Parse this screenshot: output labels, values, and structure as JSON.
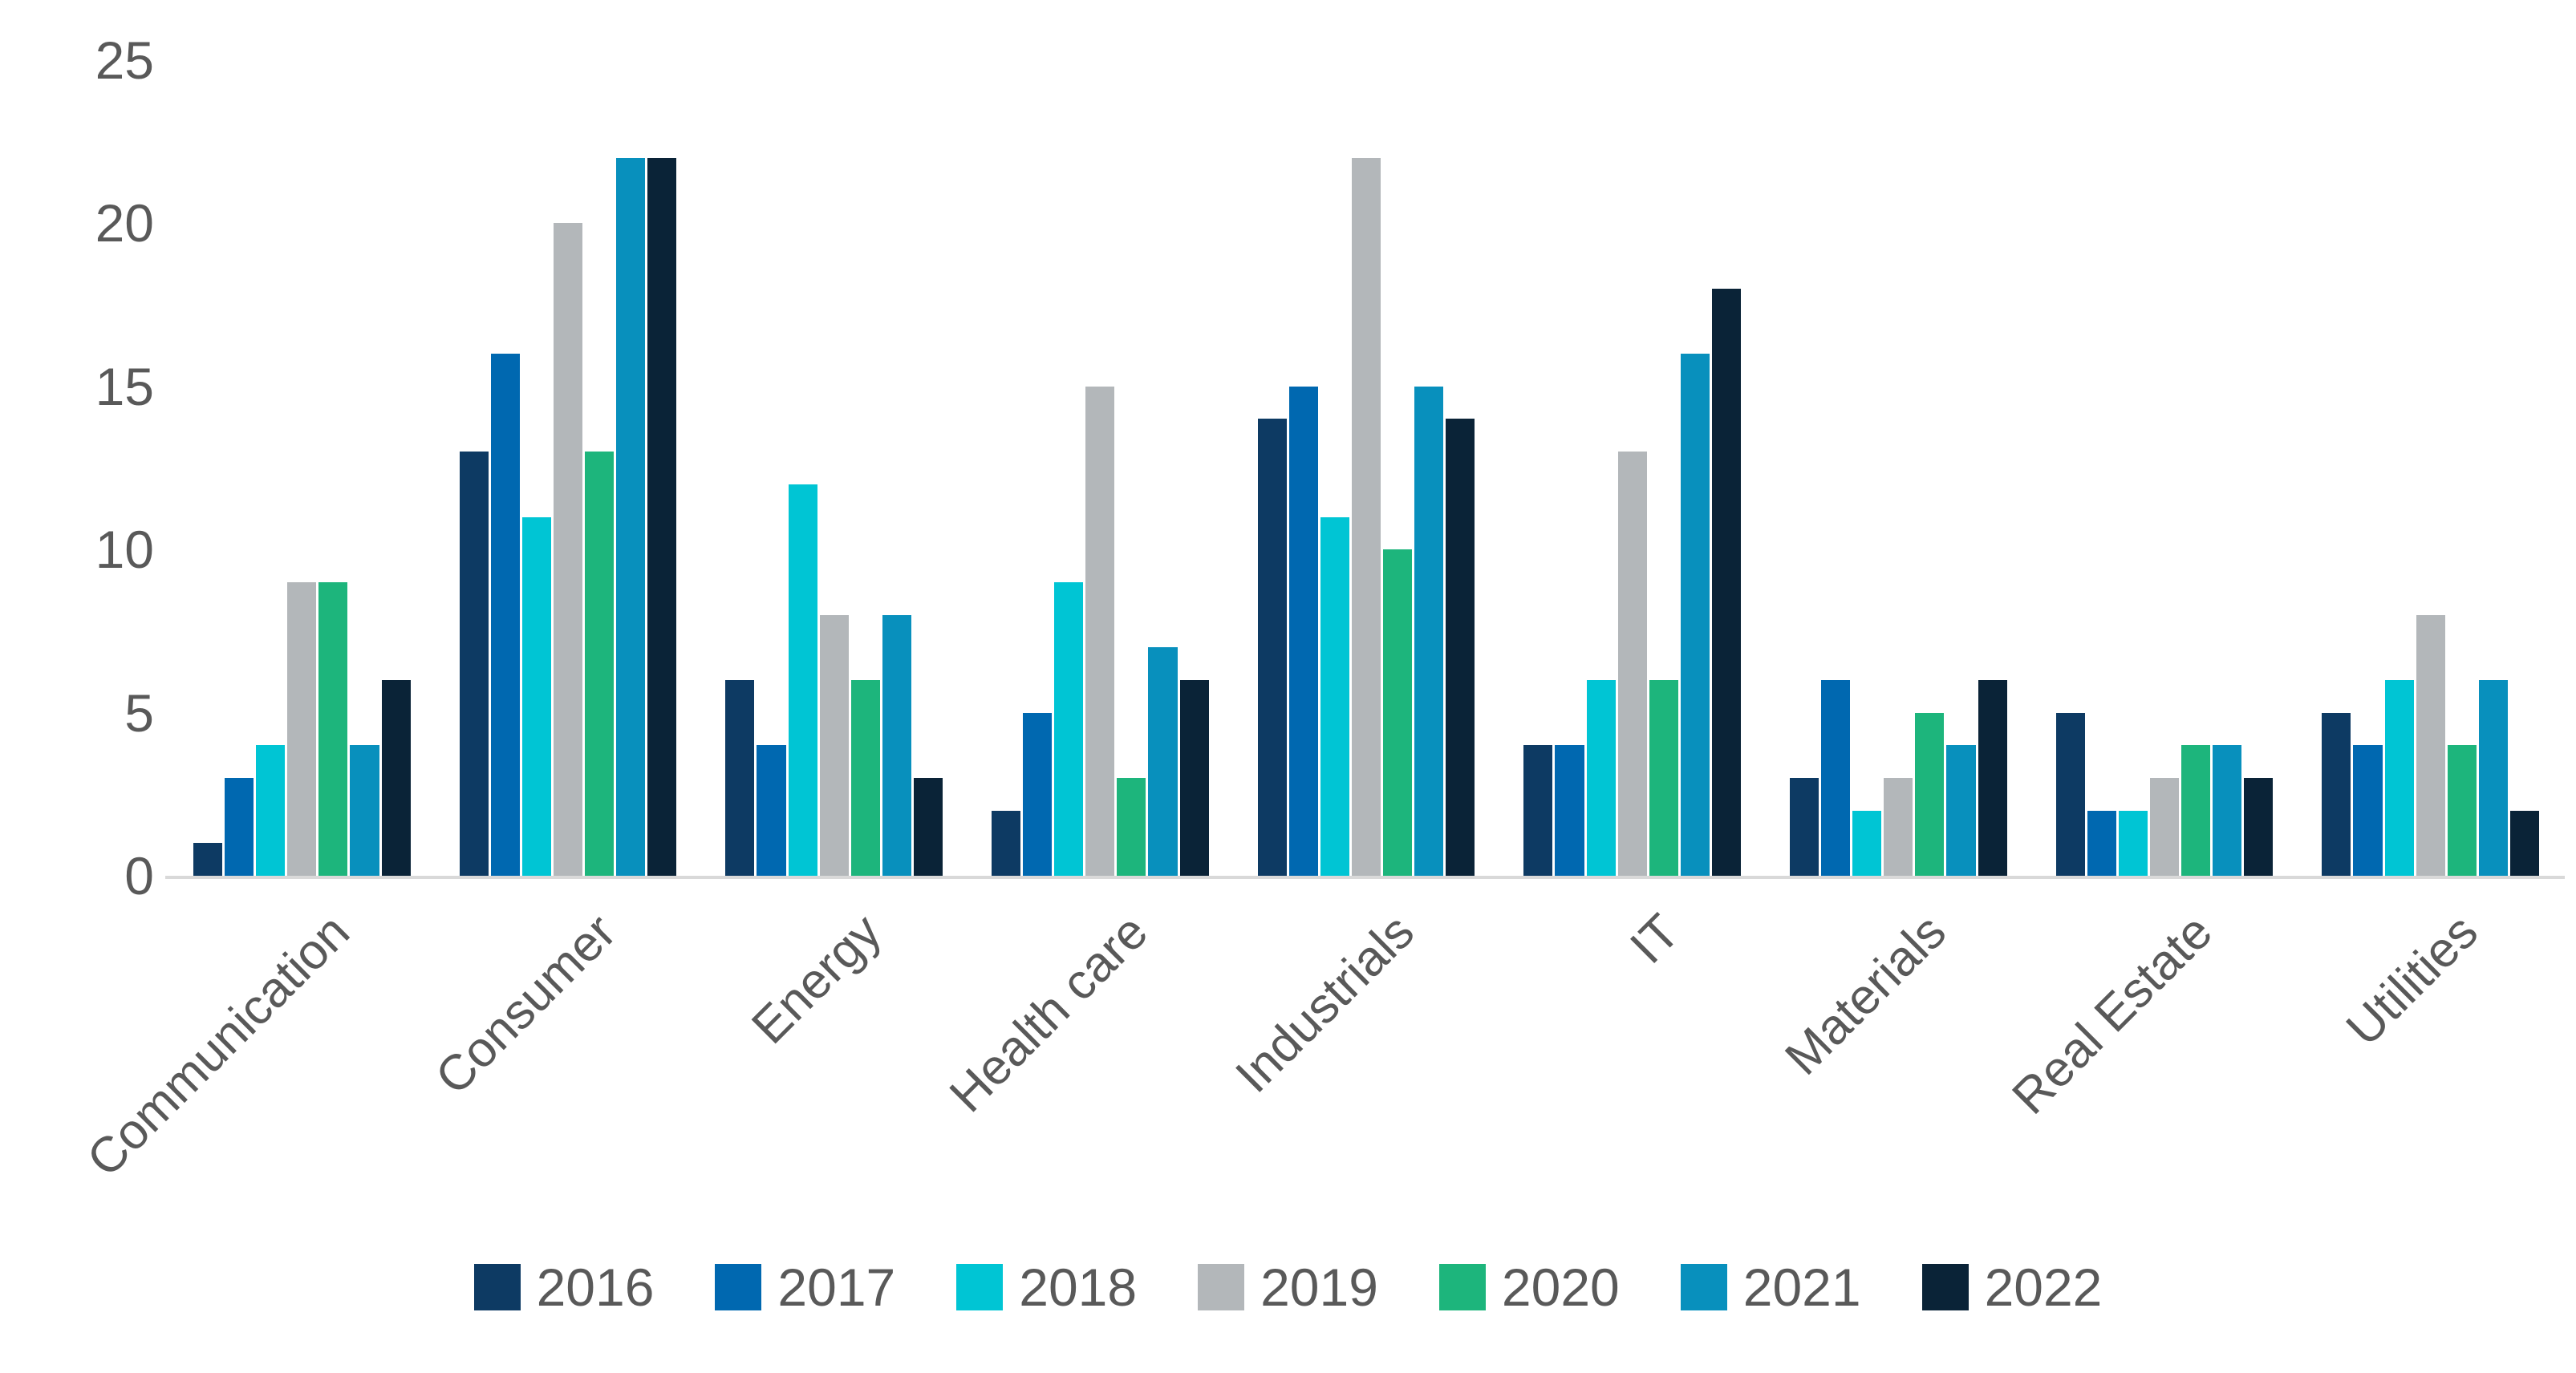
{
  "chart_data": {
    "type": "bar",
    "title": "",
    "categories": [
      "Communication",
      "Consumer",
      "Energy",
      "Health care",
      "Industrials",
      "IT",
      "Materials",
      "Real Estate",
      "Utilities"
    ],
    "series": [
      {
        "name": "2016",
        "color": "#0d3a63",
        "values": [
          1,
          13,
          6,
          2,
          14,
          4,
          3,
          5,
          5
        ]
      },
      {
        "name": "2017",
        "color": "#0068b0",
        "values": [
          3,
          16,
          4,
          5,
          15,
          4,
          6,
          2,
          4
        ]
      },
      {
        "name": "2018",
        "color": "#00c5d4",
        "values": [
          4,
          11,
          12,
          9,
          11,
          6,
          2,
          2,
          6
        ]
      },
      {
        "name": "2019",
        "color": "#b3b7ba",
        "values": [
          9,
          20,
          8,
          15,
          22,
          13,
          3,
          3,
          8
        ]
      },
      {
        "name": "2020",
        "color": "#1db57c",
        "values": [
          9,
          13,
          6,
          3,
          10,
          6,
          5,
          4,
          4
        ]
      },
      {
        "name": "2021",
        "color": "#0890bd",
        "values": [
          4,
          22,
          8,
          7,
          15,
          16,
          4,
          4,
          6
        ]
      },
      {
        "name": "2022",
        "color": "#0a2337",
        "values": [
          6,
          22,
          3,
          6,
          14,
          18,
          6,
          3,
          2
        ]
      }
    ],
    "ylim": [
      0,
      25
    ],
    "yticks": [
      0,
      5,
      10,
      15,
      20,
      25
    ],
    "xlabel": "",
    "ylabel": "",
    "grid": false,
    "legend_position": "bottom",
    "axis_line_color": "#d9d9d9",
    "tick_text_color": "#595959",
    "background_color": "#ffffff"
  }
}
